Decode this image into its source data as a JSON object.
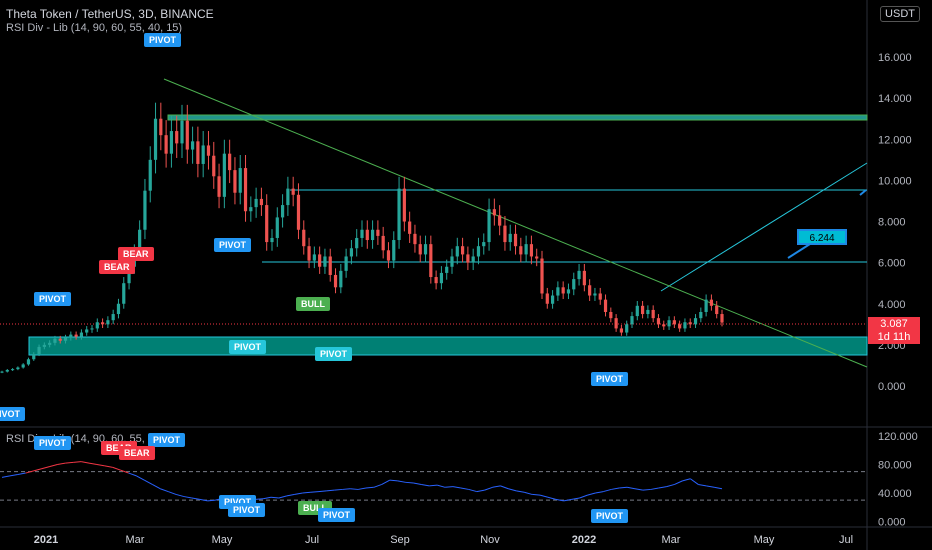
{
  "header": {
    "title": "Theta Token / TetherUS, 3D, BINANCE",
    "indicator": "RSI Div - Lib (14, 90, 60, 55, 40, 15)",
    "currency": "USDT"
  },
  "rsi_pane_label": "RSI Div - Lib (14, 90, 60, 55, 40, 15)",
  "price_tag": {
    "value": "3.087",
    "countdown": "1d 11h"
  },
  "target_label": "6.244",
  "colors": {
    "up": "#26a69a",
    "down": "#ef5350",
    "trendline": "#4caf50",
    "zone": "#009688",
    "channel": "#26c6da",
    "rsi_line": "#2962ff",
    "rsi_hot": "#f23645",
    "pivot": "#2196f3"
  },
  "chart_data": [
    {
      "type": "candlestick",
      "title": "Theta Token / TetherUS, 3D, BINANCE",
      "xlabel": "",
      "ylabel": "",
      "x_ticks": [
        "2021",
        "Mar",
        "May",
        "Jul",
        "Sep",
        "Nov",
        "2022",
        "Mar",
        "May",
        "Jul"
      ],
      "y_ticks": [
        "0.000",
        "2.000",
        "4.000",
        "6.000",
        "8.000",
        "10.000",
        "12.000",
        "14.000",
        "16.000"
      ],
      "ylim": [
        -1.5,
        18.5
      ],
      "last_price": 3.087,
      "closes": [
        0.7,
        0.78,
        0.82,
        0.9,
        1.05,
        1.3,
        1.55,
        1.9,
        2.0,
        2.1,
        2.3,
        2.2,
        2.35,
        2.5,
        2.4,
        2.6,
        2.75,
        2.8,
        3.1,
        3.0,
        3.2,
        3.5,
        4.0,
        5.0,
        5.8,
        6.5,
        7.6,
        9.5,
        11.0,
        13.0,
        12.2,
        11.3,
        12.4,
        11.8,
        12.9,
        11.5,
        11.9,
        10.8,
        11.7,
        11.2,
        10.2,
        9.2,
        11.3,
        10.5,
        9.4,
        10.6,
        8.5,
        8.7,
        9.1,
        8.8,
        7.0,
        7.2,
        8.2,
        8.8,
        9.6,
        9.3,
        7.6,
        6.8,
        6.1,
        6.4,
        5.8,
        6.3,
        5.4,
        4.8,
        5.6,
        6.3,
        6.7,
        7.2,
        7.6,
        7.1,
        7.6,
        7.3,
        6.6,
        6.1,
        7.1,
        9.6,
        8.0,
        7.4,
        6.9,
        6.4,
        6.9,
        5.3,
        5.0,
        5.5,
        5.8,
        6.3,
        6.8,
        6.4,
        6.0,
        6.3,
        6.8,
        7.0,
        8.6,
        8.3,
        7.8,
        7.0,
        7.4,
        6.8,
        6.4,
        6.9,
        6.3,
        6.2,
        4.5,
        4.0,
        4.4,
        4.8,
        4.5,
        4.7,
        5.2,
        5.6,
        4.9,
        4.4,
        4.5,
        4.2,
        3.6,
        3.3,
        2.8,
        2.6,
        3.0,
        3.4,
        3.9,
        3.5,
        3.7,
        3.3,
        3.0,
        2.9,
        3.2,
        3.0,
        2.8,
        3.1,
        3.0,
        3.3,
        3.6,
        4.2,
        3.9,
        3.5,
        3.087
      ]
    },
    {
      "type": "line",
      "title": "RSI Div - Lib (14, 90, 60, 55, 40, 15)",
      "xlabel": "",
      "ylabel": "",
      "y_ticks": [
        "0.000",
        "40.000",
        "80.000",
        "120.000"
      ],
      "ylim": [
        0,
        120
      ],
      "levels": [
        70,
        30
      ],
      "values": [
        62,
        64,
        66,
        68,
        71,
        74,
        77,
        80,
        82,
        83,
        84,
        82,
        80,
        78,
        76,
        72,
        68,
        64,
        58,
        52,
        46,
        42,
        38,
        35,
        33,
        31,
        29,
        30,
        33,
        36,
        35,
        33,
        31,
        32,
        34,
        33,
        36,
        38,
        40,
        41,
        42,
        43,
        44,
        45,
        46,
        45,
        47,
        48,
        52,
        58,
        57,
        55,
        54,
        52,
        50,
        51,
        48,
        49,
        47,
        45,
        42,
        44,
        48,
        50,
        46,
        43,
        41,
        38,
        37,
        34,
        31,
        29,
        31,
        33,
        37,
        40,
        42,
        45,
        47,
        48,
        46,
        44,
        45,
        47,
        49,
        52,
        57,
        60,
        52,
        50,
        48,
        46
      ]
    }
  ],
  "labels": {
    "pivot": "PIVOT",
    "bear": "BEAR",
    "bull": "BULL"
  }
}
